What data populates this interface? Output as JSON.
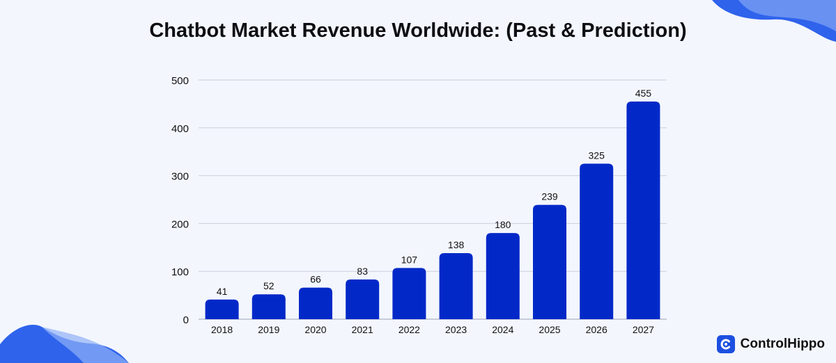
{
  "chart_data": {
    "type": "bar",
    "title": "Chatbot Market Revenue Worldwide: (Past & Prediction)",
    "categories": [
      "2018",
      "2019",
      "2020",
      "2021",
      "2022",
      "2023",
      "2024",
      "2025",
      "2026",
      "2027"
    ],
    "values": [
      41,
      52,
      66,
      83,
      107,
      138,
      180,
      239,
      325,
      455
    ],
    "yticks": [
      0,
      100,
      200,
      300,
      400,
      500
    ],
    "ylim": [
      0,
      500
    ],
    "xlabel": "",
    "ylabel": "",
    "grid": true,
    "bar_color": "#0229c8"
  },
  "brand": {
    "name": "ControlHippo",
    "color": "#1d4fe0"
  },
  "decor": {
    "blob_color": "#2f63ec",
    "blob_light": "#8fb0f6"
  }
}
